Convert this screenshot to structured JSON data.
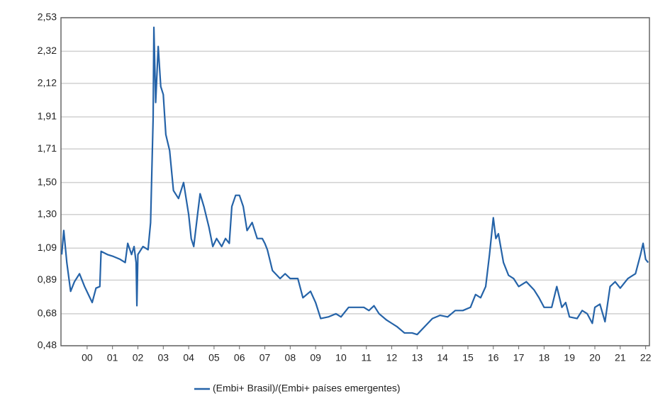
{
  "chart_data": {
    "type": "line",
    "x": [
      1999.0,
      1999.08,
      1999.2,
      1999.35,
      1999.5,
      1999.7,
      1999.9,
      2000.05,
      2000.2,
      2000.35,
      2000.5,
      2000.55,
      2000.8,
      2001.0,
      2001.3,
      2001.5,
      2001.6,
      2001.75,
      2001.85,
      2001.93,
      2001.96,
      2002.0,
      2002.2,
      2002.4,
      2002.5,
      2002.6,
      2002.63,
      2002.7,
      2002.8,
      2002.9,
      2003.0,
      2003.1,
      2003.25,
      2003.4,
      2003.6,
      2003.8,
      2003.95,
      2004.0,
      2004.1,
      2004.2,
      2004.35,
      2004.45,
      2004.6,
      2004.8,
      2004.95,
      2005.1,
      2005.3,
      2005.45,
      2005.6,
      2005.7,
      2005.85,
      2006.0,
      2006.15,
      2006.3,
      2006.5,
      2006.7,
      2006.9,
      2007.0,
      2007.1,
      2007.3,
      2007.6,
      2007.8,
      2008.0,
      2008.3,
      2008.5,
      2008.8,
      2009.0,
      2009.2,
      2009.5,
      2009.8,
      2010.0,
      2010.3,
      2010.6,
      2010.9,
      2011.1,
      2011.3,
      2011.5,
      2011.8,
      2012.0,
      2012.2,
      2012.5,
      2012.8,
      2013.0,
      2013.3,
      2013.6,
      2013.9,
      2014.2,
      2014.5,
      2014.8,
      2015.1,
      2015.3,
      2015.5,
      2015.7,
      2015.85,
      2016.0,
      2016.1,
      2016.2,
      2016.4,
      2016.6,
      2016.8,
      2017.0,
      2017.3,
      2017.6,
      2017.8,
      2018.0,
      2018.3,
      2018.5,
      2018.7,
      2018.85,
      2019.0,
      2019.3,
      2019.5,
      2019.7,
      2019.9,
      2020.0,
      2020.2,
      2020.4,
      2020.6,
      2020.8,
      2021.0,
      2021.3,
      2021.6,
      2021.8,
      2021.9,
      2022.0,
      2022.1
    ],
    "series": [
      {
        "name": "(Embi+ Brasil)/(Embi+ países emergentes)",
        "color": "#2563a8",
        "values": [
          1.05,
          1.2,
          1.0,
          0.82,
          0.88,
          0.93,
          0.85,
          0.8,
          0.75,
          0.84,
          0.85,
          1.07,
          1.05,
          1.04,
          1.02,
          1.0,
          1.12,
          1.05,
          1.1,
          1.0,
          0.73,
          1.05,
          1.1,
          1.08,
          1.25,
          1.9,
          2.47,
          2.0,
          2.35,
          2.1,
          2.05,
          1.8,
          1.7,
          1.45,
          1.4,
          1.5,
          1.35,
          1.3,
          1.15,
          1.1,
          1.3,
          1.43,
          1.35,
          1.22,
          1.1,
          1.15,
          1.1,
          1.15,
          1.12,
          1.35,
          1.42,
          1.42,
          1.35,
          1.2,
          1.25,
          1.15,
          1.15,
          1.12,
          1.08,
          0.95,
          0.9,
          0.93,
          0.9,
          0.9,
          0.78,
          0.82,
          0.75,
          0.65,
          0.66,
          0.68,
          0.66,
          0.72,
          0.72,
          0.72,
          0.7,
          0.73,
          0.68,
          0.64,
          0.62,
          0.6,
          0.56,
          0.56,
          0.55,
          0.6,
          0.65,
          0.67,
          0.66,
          0.7,
          0.7,
          0.72,
          0.8,
          0.78,
          0.85,
          1.05,
          1.28,
          1.15,
          1.18,
          1.0,
          0.92,
          0.9,
          0.85,
          0.88,
          0.83,
          0.78,
          0.72,
          0.72,
          0.85,
          0.72,
          0.75,
          0.66,
          0.65,
          0.7,
          0.68,
          0.62,
          0.72,
          0.74,
          0.63,
          0.85,
          0.88,
          0.84,
          0.9,
          0.93,
          1.05,
          1.12,
          1.02,
          1.0
        ]
      }
    ],
    "xlim": [
      1998.97,
      2022.15
    ],
    "xticks": [
      {
        "value": 2000,
        "label": "00"
      },
      {
        "value": 2001,
        "label": "01"
      },
      {
        "value": 2002,
        "label": "02"
      },
      {
        "value": 2003,
        "label": "03"
      },
      {
        "value": 2004,
        "label": "04"
      },
      {
        "value": 2005,
        "label": "05"
      },
      {
        "value": 2006,
        "label": "06"
      },
      {
        "value": 2007,
        "label": "07"
      },
      {
        "value": 2008,
        "label": "08"
      },
      {
        "value": 2009,
        "label": "09"
      },
      {
        "value": 2010,
        "label": "10"
      },
      {
        "value": 2011,
        "label": "11"
      },
      {
        "value": 2012,
        "label": "12"
      },
      {
        "value": 2013,
        "label": "13"
      },
      {
        "value": 2014,
        "label": "14"
      },
      {
        "value": 2015,
        "label": "15"
      },
      {
        "value": 2016,
        "label": "16"
      },
      {
        "value": 2017,
        "label": "17"
      },
      {
        "value": 2018,
        "label": "18"
      },
      {
        "value": 2019,
        "label": "19"
      },
      {
        "value": 2020,
        "label": "20"
      },
      {
        "value": 2021,
        "label": "21"
      },
      {
        "value": 2022,
        "label": "22"
      }
    ],
    "ylim": [
      0.48,
      2.53
    ],
    "yticks": [
      {
        "value": 0.48,
        "label": "0,48"
      },
      {
        "value": 0.68,
        "label": "0,68"
      },
      {
        "value": 0.89,
        "label": "0,89"
      },
      {
        "value": 1.09,
        "label": "1,09"
      },
      {
        "value": 1.3,
        "label": "1,30"
      },
      {
        "value": 1.5,
        "label": "1,50"
      },
      {
        "value": 1.71,
        "label": "1,71"
      },
      {
        "value": 1.91,
        "label": "1,91"
      },
      {
        "value": 2.12,
        "label": "2,12"
      },
      {
        "value": 2.32,
        "label": "2,32"
      },
      {
        "value": 2.53,
        "label": "2,53"
      }
    ],
    "grid": true
  }
}
